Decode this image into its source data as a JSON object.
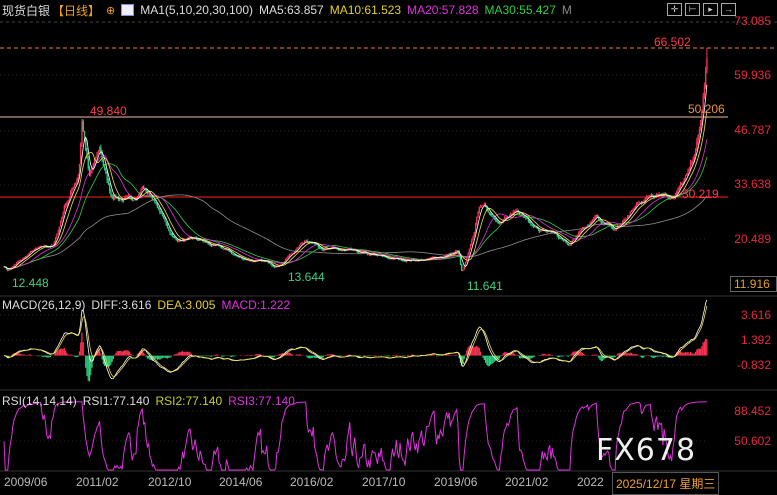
{
  "header": {
    "instrument": "现货白银",
    "period": "【日线】",
    "indicator": "MA1(5,10,20,30,100)",
    "ma5": "MA5:63.857",
    "ma10": "MA10:61.523",
    "ma20": "MA20:57.828",
    "ma30": "MA30:55.427",
    "more": "M"
  },
  "colors": {
    "up": "#ff3355",
    "down": "#2fcf82",
    "ma5": "#ffffff",
    "ma10": "#f0e030",
    "ma20": "#e030e0",
    "ma30": "#30d040",
    "ma100": "#909090",
    "axis": "#e8283c"
  },
  "toolbar": [
    "crosshair-icon",
    "zoom-range-icon",
    "play-icon",
    "exit-icon"
  ],
  "macd": {
    "label": "MACD(26,12,9)",
    "diff": "DIFF:3.616",
    "dea": "DEA:3.005",
    "macd": "MACD:1.222",
    "ticks": [
      "3.616",
      "1.392",
      "-0.832"
    ]
  },
  "rsi": {
    "label": "RSI(14,14,14)",
    "rsi1": "RSI1:77.140",
    "rsi2": "RSI2:77.140",
    "rsi3": "RSI3:77.140",
    "ticks": [
      "88.452",
      "50.602"
    ]
  },
  "watermark": "FX678",
  "chart_data": {
    "type": "candlestick",
    "y_ticks": [
      "73.085",
      "59.936",
      "46.787",
      "33.638",
      "20.489",
      "11.916"
    ],
    "ylim": [
      11.916,
      73.085
    ],
    "x_ticks": [
      "2009/06",
      "2011/02",
      "2012/10",
      "2014/06",
      "2016/02",
      "2017/10",
      "2019/06",
      "2021/02",
      "2022"
    ],
    "cursor_date": "2025/12/17 星期三",
    "annotations": {
      "high_recent": "66.502",
      "high_2011": "49.840",
      "level_2011": "50.206",
      "level_support": "30.219",
      "low_2009": "12.448",
      "low_2015": "13.644",
      "low_2020": "11.641"
    },
    "approx_close_path": [
      [
        "2009/06",
        13.5
      ],
      [
        "2009/07",
        12.45
      ],
      [
        "2010/02",
        17
      ],
      [
        "2010/08",
        18.5
      ],
      [
        "2010/11",
        28
      ],
      [
        "2011/03",
        36
      ],
      [
        "2011/04",
        49.84
      ],
      [
        "2011/06",
        35
      ],
      [
        "2011/09",
        42
      ],
      [
        "2011/12",
        31
      ],
      [
        "2012/06",
        29
      ],
      [
        "2012/09",
        33
      ],
      [
        "2012/12",
        30
      ],
      [
        "2013/04",
        23
      ],
      [
        "2013/06",
        20
      ],
      [
        "2014/01",
        19.5
      ],
      [
        "2014/09",
        17
      ],
      [
        "2014/12",
        15.5
      ],
      [
        "2015/11",
        13.64
      ],
      [
        "2016/07",
        20
      ],
      [
        "2017/02",
        17.5
      ],
      [
        "2018/08",
        15
      ],
      [
        "2019/06",
        15
      ],
      [
        "2020/02",
        17
      ],
      [
        "2020/03",
        11.64
      ],
      [
        "2020/08",
        28.5
      ],
      [
        "2021/01",
        25
      ],
      [
        "2021/07",
        26
      ],
      [
        "2021/11",
        24
      ],
      [
        "2022/06",
        21
      ],
      [
        "2022/09",
        18.5
      ],
      [
        "2023/05",
        25
      ],
      [
        "2023/10",
        22
      ],
      [
        "2024/05",
        29
      ],
      [
        "2024/10",
        32
      ],
      [
        "2025/03",
        31
      ],
      [
        "2025/07",
        36
      ],
      [
        "2025/10",
        46
      ],
      [
        "2025/12",
        63.86
      ]
    ]
  }
}
